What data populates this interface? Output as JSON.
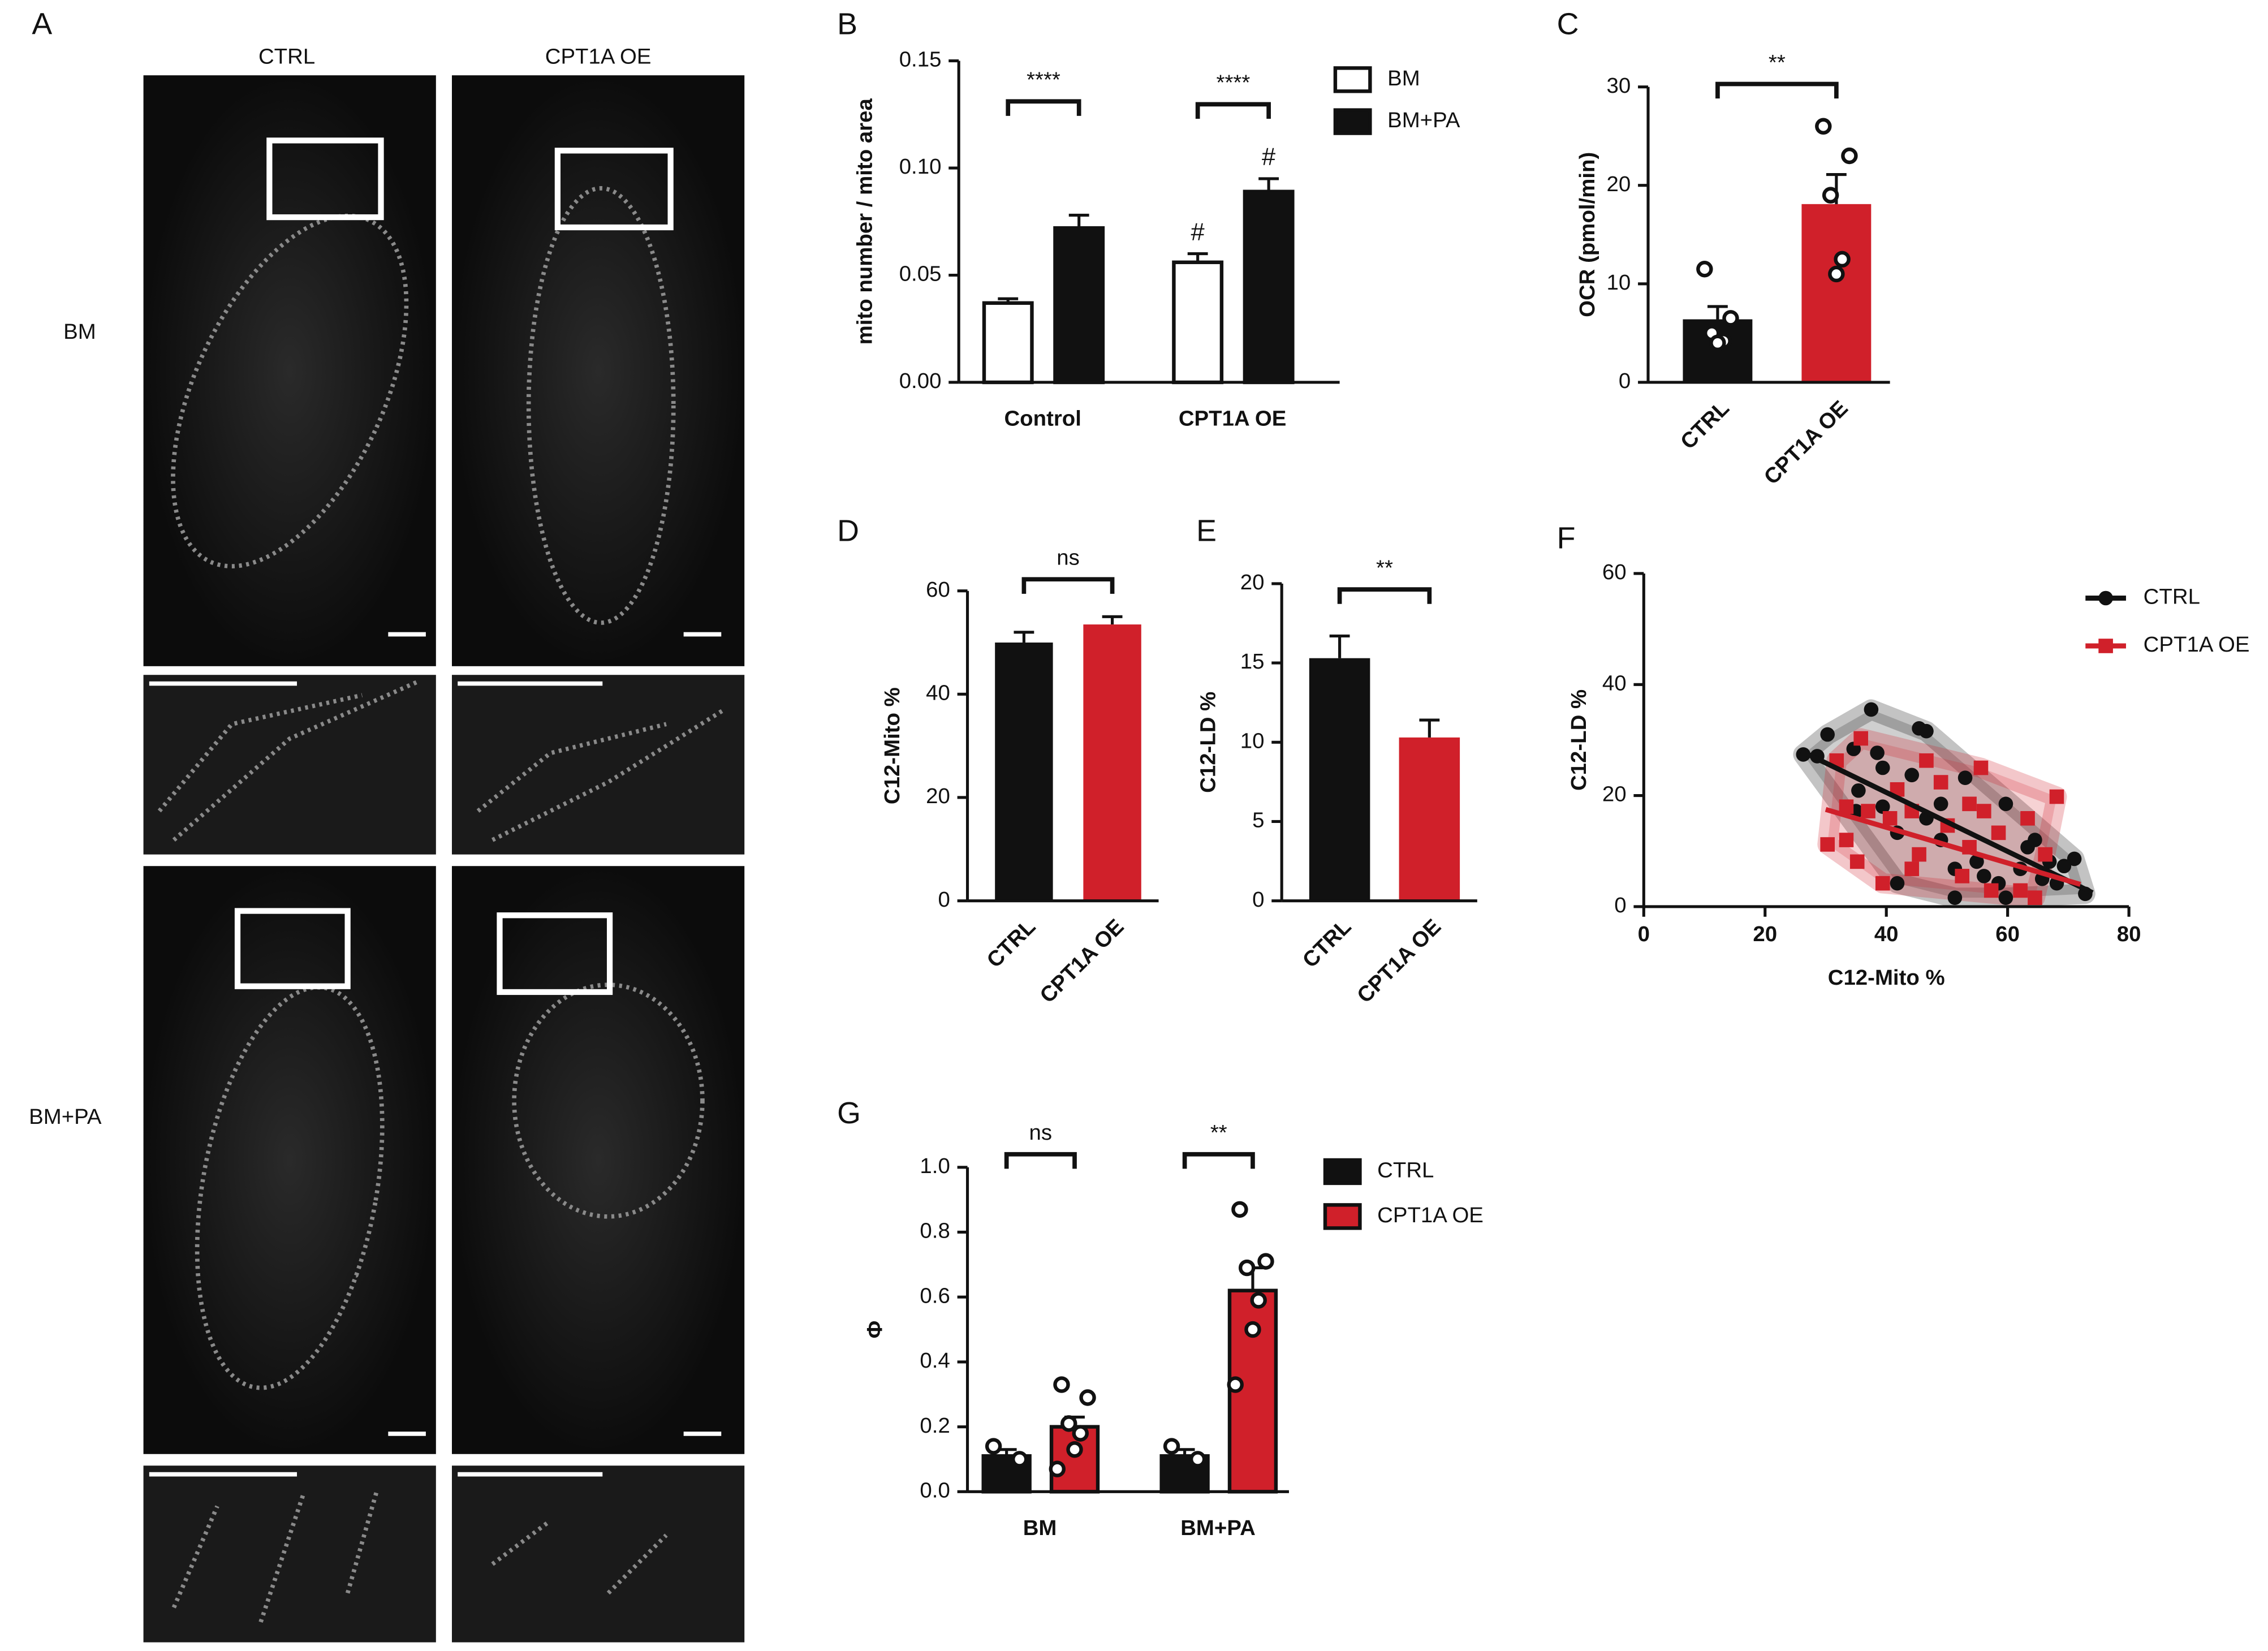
{
  "panel_a": {
    "letter": "A",
    "columns": [
      "CTRL",
      "CPT1A OE"
    ],
    "rows": [
      "BM",
      "BM+PA"
    ]
  },
  "chart_data": [
    {
      "type": "bar",
      "panel": "B",
      "ylabel": "mito number / mito area",
      "categories": [
        "Control",
        "CPT1A OE"
      ],
      "ylim": [
        0,
        0.15
      ],
      "yticks": [
        {
          "value": 0,
          "label": "0.00"
        },
        {
          "value": 0.05,
          "label": "0.05"
        },
        {
          "value": 0.1,
          "label": "0.10"
        },
        {
          "value": 0.15,
          "label": "0.15"
        }
      ],
      "series": [
        {
          "name": "BM",
          "color": "#ffffff",
          "values": [
            0.037,
            0.056
          ],
          "errors": [
            0.002,
            0.004
          ],
          "notes": [
            null,
            "#"
          ]
        },
        {
          "name": "BM+PA",
          "color": "#111111",
          "values": [
            0.072,
            0.089
          ],
          "errors": [
            0.006,
            0.006
          ],
          "notes": [
            null,
            "#"
          ]
        }
      ],
      "significance": [
        "****",
        "****"
      ]
    },
    {
      "type": "bar",
      "panel": "C",
      "ylabel": "OCR (pmol/min)",
      "categories": [
        "CTRL",
        "CPT1A OE"
      ],
      "ylim": [
        0,
        30
      ],
      "yticks": [
        0,
        10,
        20,
        30
      ],
      "values": [
        6.4,
        18.1
      ],
      "errors": [
        1.3,
        3.0
      ],
      "colors": [
        "#111111",
        "#d0202a"
      ],
      "points": [
        [
          11.5,
          6.5,
          5.0,
          4.2,
          4.0
        ],
        [
          26,
          23,
          19,
          12.5,
          11
        ]
      ],
      "significance": "**"
    },
    {
      "type": "bar",
      "panel": "D",
      "ylabel": "C12-Mito %",
      "categories": [
        "CTRL",
        "CPT1A OE"
      ],
      "ylim": [
        0,
        60
      ],
      "yticks": [
        0,
        20,
        40,
        60
      ],
      "values": [
        50,
        53.5
      ],
      "errors": [
        2,
        1.5
      ],
      "colors": [
        "#111111",
        "#d0202a"
      ],
      "significance": "ns"
    },
    {
      "type": "bar",
      "panel": "E",
      "ylabel": "C12-LD %",
      "categories": [
        "CTRL",
        "CPT1A OE"
      ],
      "ylim": [
        0,
        20
      ],
      "yticks": [
        0,
        5,
        10,
        15,
        20
      ],
      "values": [
        15.3,
        10.3
      ],
      "errors": [
        1.4,
        1.1
      ],
      "colors": [
        "#111111",
        "#d0202a"
      ],
      "significance": "**"
    },
    {
      "type": "scatter",
      "panel": "F",
      "xlabel": "C12-Mito %",
      "ylabel": "C12-LD %",
      "xlim": [
        0,
        80
      ],
      "xticks": [
        0,
        20,
        40,
        60,
        80
      ],
      "ylim": [
        0,
        60
      ],
      "yticks": [
        0,
        20,
        40,
        60
      ],
      "series": [
        {
          "name": "CTRL",
          "color": "#111111",
          "marker": "circle",
          "x": [
            26.3,
            28.6,
            30.3,
            34.6,
            37.5,
            38.5,
            39.4,
            35.4,
            35.0,
            39.4,
            41.8,
            44.2,
            45.4,
            46.6,
            46.6,
            49.0,
            49.0,
            51.3,
            53.0,
            54.9,
            56.1,
            58.5,
            59.7,
            59.7,
            62.1,
            63.3,
            64.5,
            65.7,
            66.9,
            68.1,
            69.3,
            71.0,
            72.8,
            51.3,
            41.8
          ],
          "y": [
            27.4,
            27.1,
            31.0,
            28.4,
            35.5,
            27.7,
            25.0,
            20.9,
            17.2,
            18.0,
            13.3,
            23.7,
            32.1,
            31.6,
            15.9,
            18.5,
            12.0,
            6.8,
            23.2,
            8.1,
            5.5,
            4.2,
            18.5,
            1.6,
            6.8,
            10.7,
            12.0,
            5.0,
            8.1,
            4.2,
            7.3,
            8.6,
            2.3,
            1.6,
            4.2
          ],
          "fit": {
            "x": [
              26,
              74
            ],
            "y": [
              28,
              2.5
            ]
          }
        },
        {
          "name": "CPT1A OE",
          "color": "#d0202a",
          "marker": "square",
          "x": [
            31.8,
            35.8,
            33.4,
            33.4,
            35.2,
            30.3,
            39.4,
            44.2,
            44.2,
            46.6,
            49.0,
            50.1,
            53.7,
            53.7,
            56.1,
            57.3,
            58.5,
            62.1,
            63.3,
            64.5,
            68.1,
            66.2,
            37.0,
            41.8,
            45.4,
            52.5,
            40.6,
            55.6
          ],
          "y": [
            26.3,
            30.3,
            18.0,
            12.0,
            8.1,
            11.2,
            4.2,
            6.8,
            17.2,
            26.3,
            22.4,
            14.6,
            18.5,
            10.7,
            17.2,
            2.9,
            13.3,
            2.9,
            15.9,
            1.6,
            19.8,
            9.4,
            17.2,
            21.1,
            9.4,
            5.5,
            15.9,
            25.0
          ],
          "fit": {
            "x": [
              30,
              72
            ],
            "y": [
              17.5,
              4
            ]
          }
        }
      ]
    },
    {
      "type": "bar",
      "panel": "G",
      "ylabel": "Φ",
      "categories": [
        "BM",
        "BM+PA"
      ],
      "ylim": [
        0,
        1
      ],
      "yticks": [
        {
          "value": 0,
          "label": "0.0"
        },
        {
          "value": 0.2,
          "label": "0.2"
        },
        {
          "value": 0.4,
          "label": "0.4"
        },
        {
          "value": 0.6,
          "label": "0.6"
        },
        {
          "value": 0.8,
          "label": "0.8"
        },
        {
          "value": 1,
          "label": "1.0"
        }
      ],
      "series": [
        {
          "name": "CTRL",
          "color": "#111111",
          "values": [
            0.11,
            0.11
          ],
          "errors": [
            0.02,
            0.02
          ],
          "points": [
            [
              0.14,
              0.1
            ],
            [
              0.14,
              0.1
            ]
          ]
        },
        {
          "name": "CPT1A OE",
          "color": "#d0202a",
          "values": [
            0.2,
            0.62
          ],
          "errors": [
            0.03,
            0.07
          ],
          "points": [
            [
              0.33,
              0.29,
              0.21,
              0.18,
              0.13,
              0.07
            ],
            [
              0.87,
              0.71,
              0.69,
              0.59,
              0.5,
              0.33
            ]
          ]
        }
      ],
      "significance": [
        "ns",
        "**"
      ]
    }
  ]
}
